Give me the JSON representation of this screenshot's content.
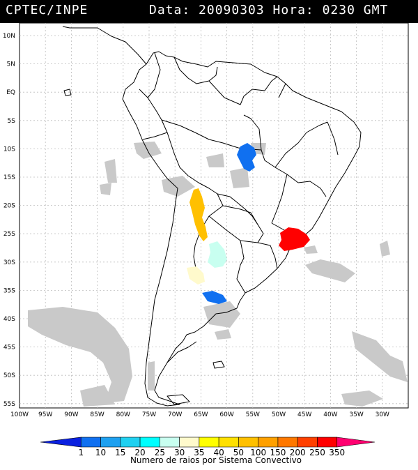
{
  "header": {
    "source": "CPTEC/INPE",
    "datetime": "Data: 20090303 Hora: 0230 GMT"
  },
  "map": {
    "lat_labels": [
      "10N",
      "5N",
      "EQ",
      "5S",
      "10S",
      "15S",
      "20S",
      "25S",
      "30S",
      "35S",
      "40S",
      "45S",
      "50S",
      "55S"
    ],
    "lon_labels": [
      "100W",
      "95W",
      "90W",
      "85W",
      "80W",
      "75W",
      "70W",
      "65W",
      "60W",
      "55W",
      "50W",
      "45W",
      "40W",
      "35W",
      "30W"
    ]
  },
  "legend": {
    "title": "Numero de raios por Sistema Convectivo",
    "values": [
      "1",
      "10",
      "15",
      "20",
      "25",
      "30",
      "35",
      "40",
      "50",
      "100",
      "150",
      "200",
      "250",
      "350"
    ],
    "colors": [
      "#0a20e0",
      "#1070f0",
      "#1ea0f0",
      "#20d0f0",
      "#00ffff",
      "#c8fff0",
      "#fffacc",
      "#ffff00",
      "#ffe000",
      "#ffc000",
      "#ffa000",
      "#ff7800",
      "#ff4000",
      "#ff0000",
      "#ff0070"
    ]
  },
  "systems": [
    {
      "name": "central-brazil",
      "color": "#1070f0"
    },
    {
      "name": "northwest-argentina",
      "color": "#ffc000"
    },
    {
      "name": "southeast-brazil",
      "color": "#ff0000"
    },
    {
      "name": "central-argentina",
      "color": "#c8fff0"
    },
    {
      "name": "western-argentina",
      "color": "#fffacc"
    },
    {
      "name": "buenos-aires",
      "color": "#1070f0"
    }
  ]
}
